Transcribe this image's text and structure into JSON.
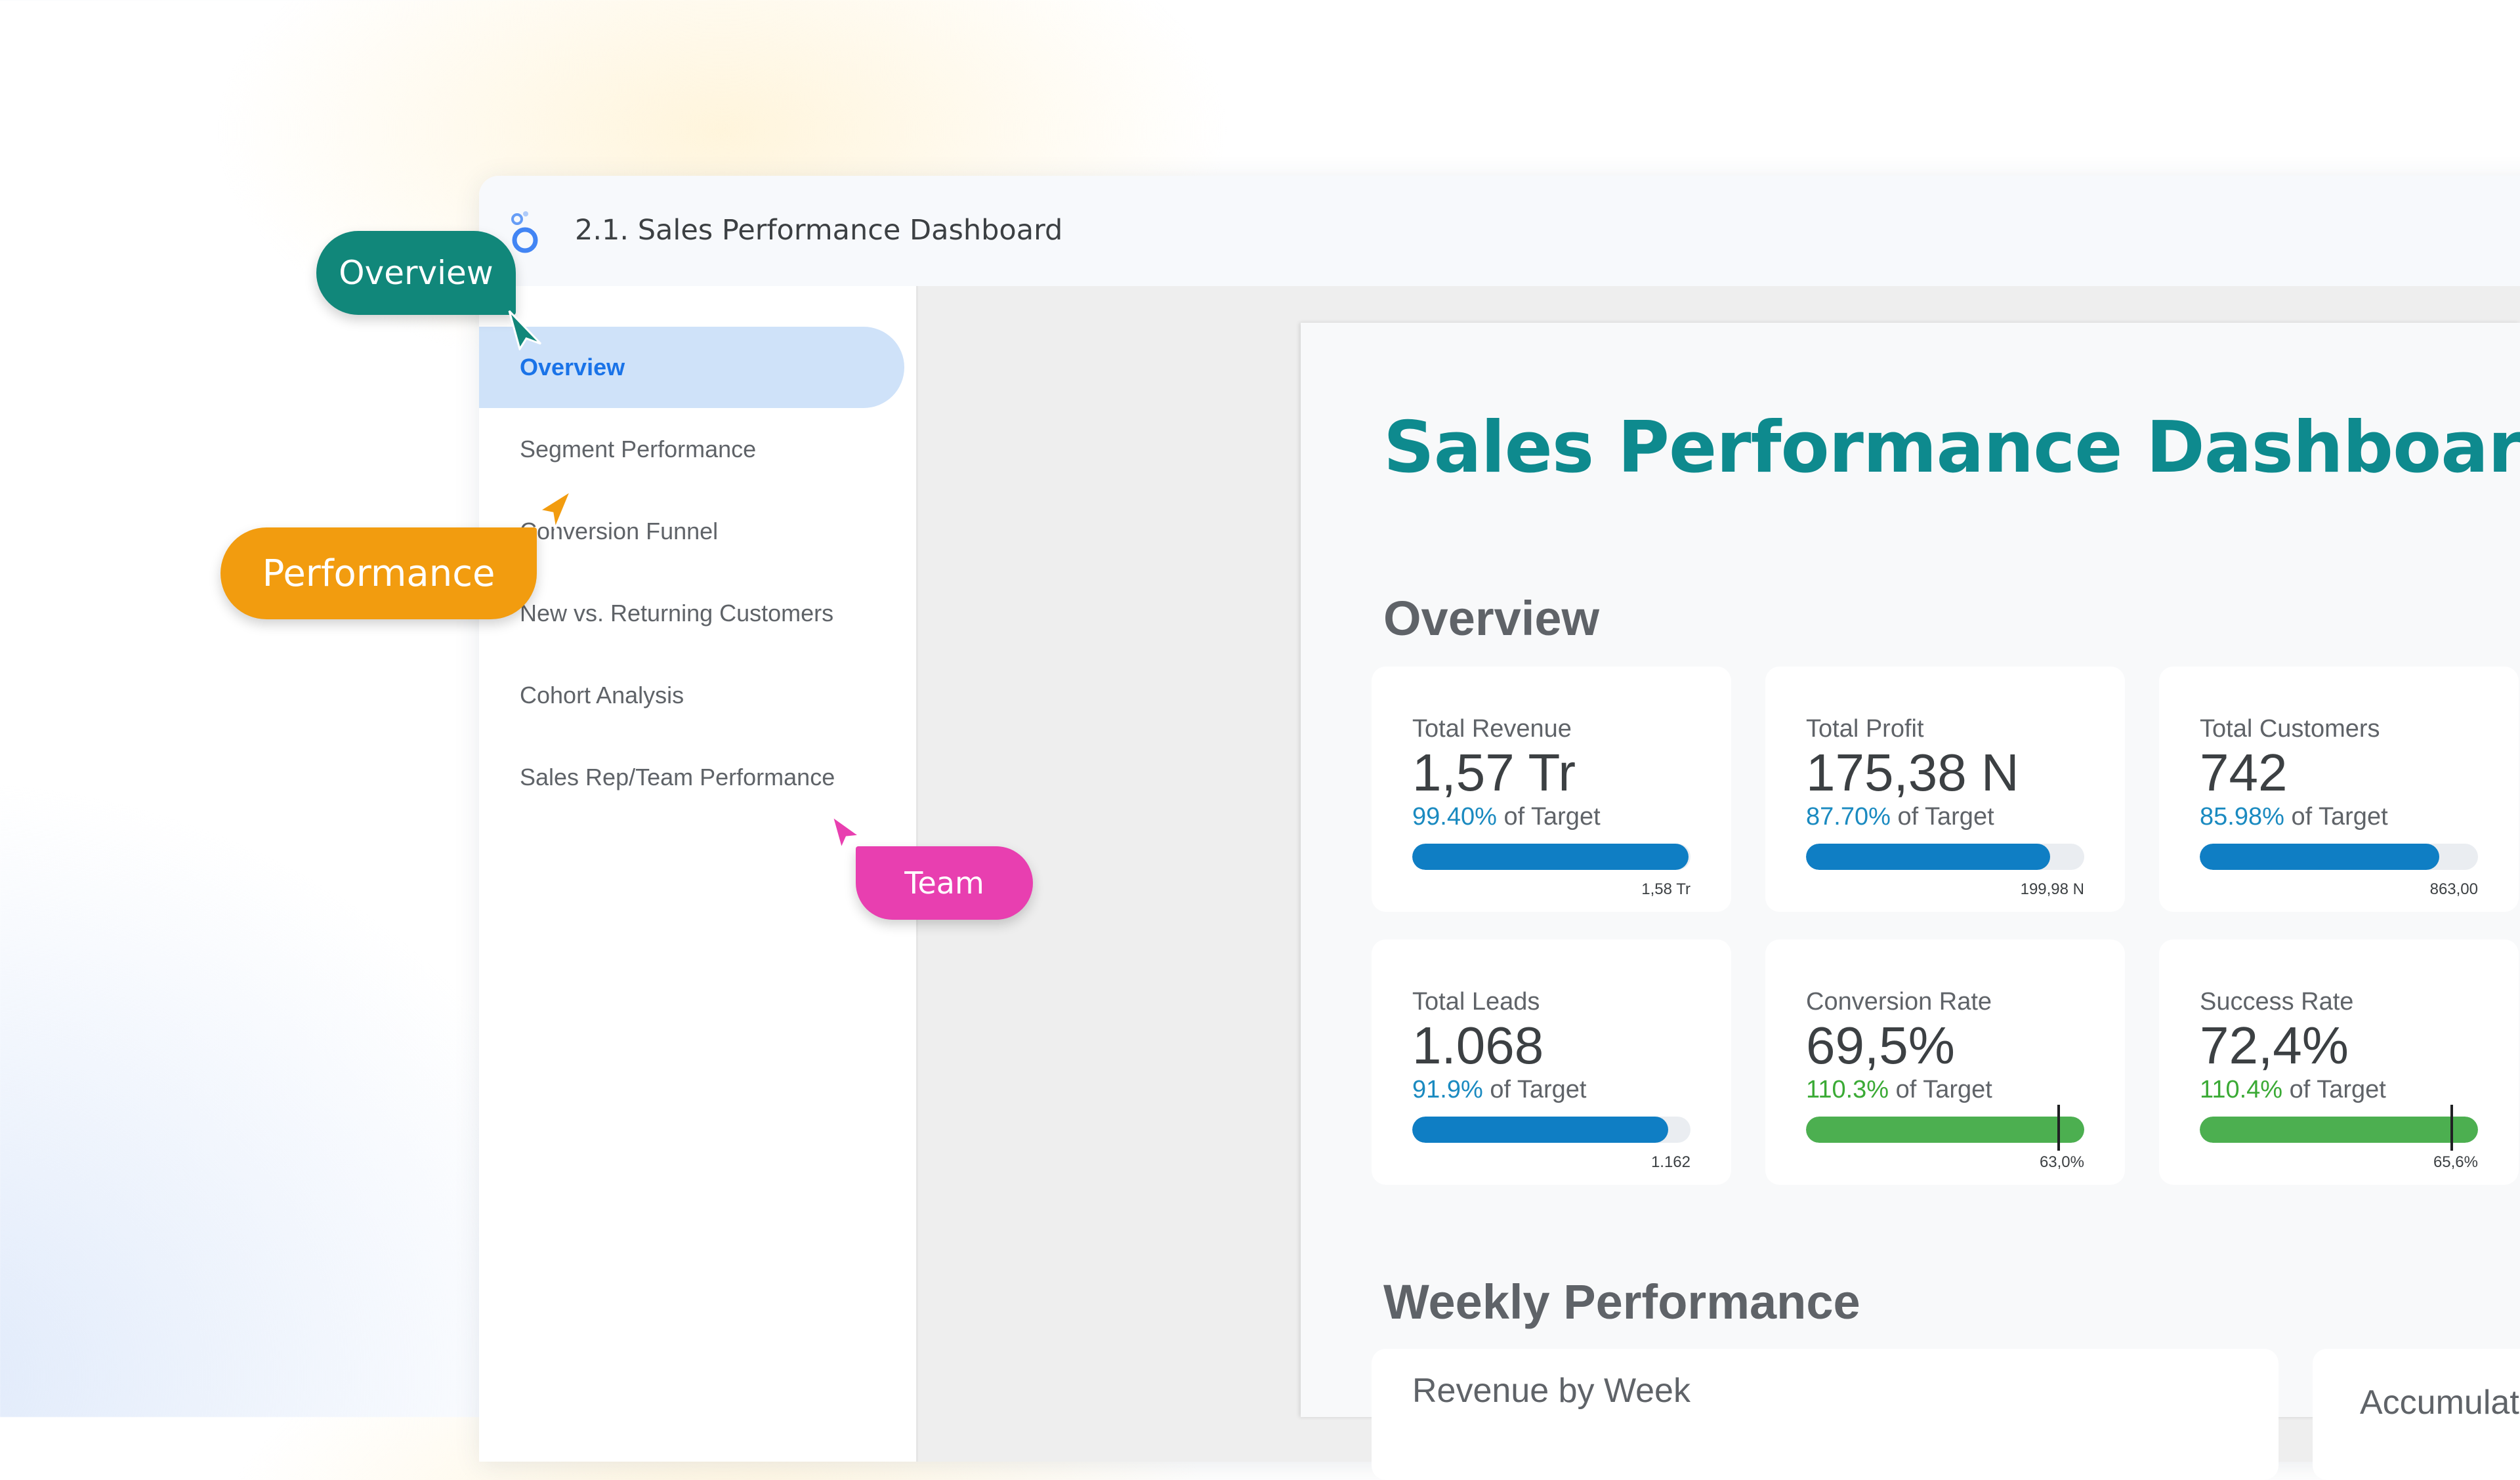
{
  "window": {
    "title": "2.1. Sales Performance Dashboard",
    "logo_icon": "looker-studio-icon"
  },
  "sidebar": {
    "items": [
      {
        "label": "Overview",
        "active": true
      },
      {
        "label": "Segment Performance",
        "active": false
      },
      {
        "label": "Conversion Funnel",
        "active": false
      },
      {
        "label": "New vs. Returning Customers",
        "active": false
      },
      {
        "label": "Cohort Analysis",
        "active": false
      },
      {
        "label": "Sales Rep/Team Performance",
        "active": false
      }
    ]
  },
  "report": {
    "title": "Sales Performance Dashboard",
    "overview_heading": "Overview",
    "weekly_heading": "Weekly Performance",
    "kpis": [
      {
        "label": "Total Revenue",
        "value": "1,57 Tr",
        "pct": "99.40%",
        "pct_suffix": "of Target",
        "progress": 0.994,
        "target": "1,58 Tr",
        "status": "blue"
      },
      {
        "label": "Total Profit",
        "value": "175,38 N",
        "pct": "87.70%",
        "pct_suffix": "of Target",
        "progress": 0.877,
        "target": "199,98 N",
        "status": "blue"
      },
      {
        "label": "Total Customers",
        "value": "742",
        "pct": "85.98%",
        "pct_suffix": "of Target",
        "progress": 0.8598,
        "target": "863,00",
        "status": "blue"
      },
      {
        "label": "Total Leads",
        "value": "1.068",
        "pct": "91.9%",
        "pct_suffix": "of Target",
        "progress": 0.919,
        "target": "1.162",
        "status": "blue"
      },
      {
        "label": "Conversion Rate",
        "value": "69,5%",
        "pct": "110.3%",
        "pct_suffix": "of Target",
        "progress": 1.0,
        "target_marker": 0.907,
        "target": "63,0%",
        "status": "green"
      },
      {
        "label": "Success Rate",
        "value": "72,4%",
        "pct": "110.4%",
        "pct_suffix": "of Target",
        "progress": 1.0,
        "target_marker": 0.906,
        "target": "65,6%",
        "status": "green"
      }
    ],
    "charts": [
      {
        "title": "Revenue by Week"
      },
      {
        "title": "Accumulat"
      }
    ]
  },
  "callouts": [
    {
      "label": "Overview",
      "color": "#11877a"
    },
    {
      "label": "Performance",
      "color": "#f29c0f"
    },
    {
      "label": "Team",
      "color": "#e83fb0"
    }
  ],
  "colors": {
    "accent_teal": "#0e8a8e",
    "nav_active_bg": "#cfe2f9",
    "nav_active_text": "#1a73e8",
    "progress_blue": "#0f7ec4",
    "progress_green": "#4caf50"
  }
}
